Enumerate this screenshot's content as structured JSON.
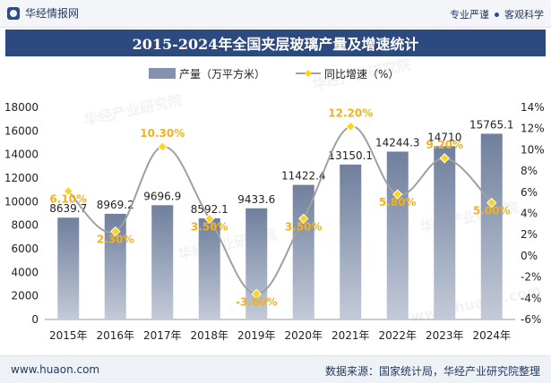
{
  "brand": {
    "name": "华经情报网"
  },
  "tags": [
    "专业严谨",
    "客观科学"
  ],
  "footer": {
    "url": "www.huaon.com",
    "source": "数据来源：国家统计局，华经产业研究院整理"
  },
  "watermarks": [
    "华经产业研究院",
    "华经产业研究院",
    "华经产业研究院",
    "华经产业研究院",
    "www.huaon.com"
  ],
  "colors": {
    "bar": "#8492ad",
    "line": "#a0a0a0",
    "marker": "#ffd41a",
    "rate_label": "#f2b21f",
    "title_bg": "#2c4a80",
    "text": "#222222"
  },
  "chart_data": {
    "type": "bar",
    "title": "2015-2024年全国夹层玻璃产量及增速统计",
    "categories": [
      "2015年",
      "2016年",
      "2017年",
      "2018年",
      "2019年",
      "2020年",
      "2021年",
      "2022年",
      "2023年",
      "2024年"
    ],
    "series": [
      {
        "name": "产量（万平方米）",
        "type": "bar",
        "axis": "left",
        "values": [
          8639.7,
          8969.2,
          9696.9,
          8592.1,
          9433.6,
          11422.4,
          13150.1,
          14244.3,
          14710,
          15765.1
        ],
        "labels": [
          "8639.7",
          "8969.2",
          "9696.9",
          "8592.1",
          "9433.6",
          "11422.4",
          "13150.1",
          "14244.3",
          "14710",
          "15765.1"
        ]
      },
      {
        "name": "同比增速（%）",
        "type": "line",
        "axis": "right",
        "values": [
          6.1,
          2.3,
          10.3,
          3.5,
          -3.6,
          3.5,
          12.2,
          5.8,
          9.2,
          5.0
        ],
        "labels": [
          "6.10%",
          "2.30%",
          "10.30%",
          "3.50%",
          "-3.60%",
          "3.50%",
          "12.20%",
          "5.80%",
          "9.20%",
          "5.00%"
        ]
      }
    ],
    "y_left": {
      "min": 0,
      "max": 18000,
      "ticks": [
        "0",
        "2000",
        "4000",
        "6000",
        "8000",
        "10000",
        "12000",
        "14000",
        "16000",
        "18000"
      ]
    },
    "y_right": {
      "min": -6,
      "max": 14,
      "ticks": [
        "-6%",
        "-4%",
        "-2%",
        "0%",
        "2%",
        "4%",
        "6%",
        "8%",
        "10%",
        "12%",
        "14%"
      ]
    },
    "legend": {
      "position": "top-center"
    },
    "grid": false
  }
}
